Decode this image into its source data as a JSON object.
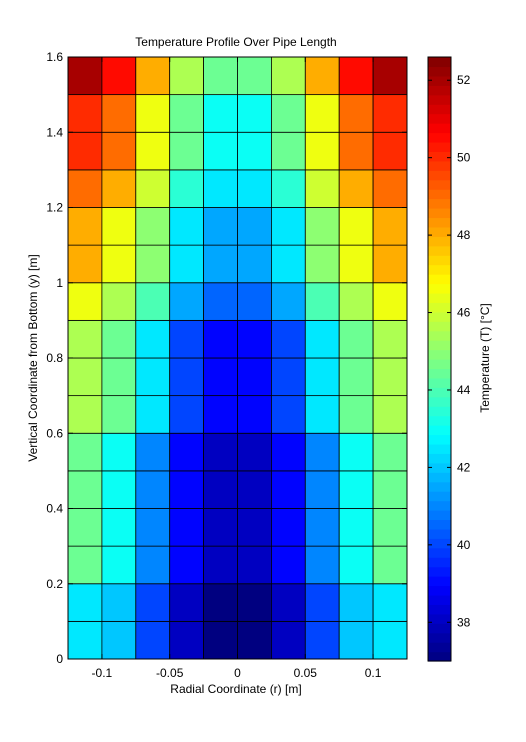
{
  "chart_data": {
    "type": "heatmap",
    "title": "Temperature Profile Over Pipe Length",
    "xlabel": "Radial Coordinate (r) [m]",
    "ylabel": "Vertical Coordinate from Bottom (y) [m]",
    "colorbar_label": "Temperature (T) [°C]",
    "colormap": "jet",
    "xlim": [
      -0.125,
      0.125
    ],
    "ylim": [
      0,
      1.6
    ],
    "clim": [
      37.0,
      52.6
    ],
    "grid": false,
    "legend": "right",
    "x": [
      -0.1125,
      -0.0875,
      -0.0625,
      -0.0375,
      -0.0125,
      0.0125,
      0.0375,
      0.0625,
      0.0875,
      0.1125
    ],
    "y": [
      0.05,
      0.15,
      0.25,
      0.35,
      0.45,
      0.55,
      0.65,
      0.75,
      0.85,
      0.95,
      1.05,
      1.15,
      1.25,
      1.35,
      1.45,
      1.55
    ],
    "values": [
      [
        42.5,
        42.0,
        40.0,
        38.0,
        37.0,
        37.0,
        38.0,
        40.0,
        42.0,
        42.5
      ],
      [
        42.5,
        42.0,
        40.0,
        38.0,
        37.0,
        37.0,
        38.0,
        40.0,
        42.0,
        42.5
      ],
      [
        44.5,
        43.0,
        41.0,
        39.0,
        38.0,
        38.0,
        39.0,
        41.0,
        43.0,
        44.5
      ],
      [
        44.5,
        43.0,
        41.0,
        39.0,
        38.0,
        38.0,
        39.0,
        41.0,
        43.0,
        44.5
      ],
      [
        44.5,
        43.0,
        41.0,
        39.0,
        38.0,
        38.0,
        39.0,
        41.0,
        43.0,
        44.5
      ],
      [
        44.5,
        43.0,
        41.0,
        39.0,
        38.0,
        38.0,
        39.0,
        41.0,
        43.0,
        44.5
      ],
      [
        45.5,
        44.5,
        42.5,
        40.0,
        39.0,
        39.0,
        40.0,
        42.5,
        44.5,
        45.5
      ],
      [
        45.5,
        44.5,
        42.5,
        40.0,
        39.0,
        39.0,
        40.0,
        42.5,
        44.5,
        45.5
      ],
      [
        45.5,
        44.5,
        42.5,
        40.0,
        39.0,
        39.0,
        40.0,
        42.5,
        44.5,
        45.5
      ],
      [
        46.5,
        45.5,
        44.0,
        41.5,
        40.5,
        40.5,
        41.5,
        44.0,
        45.5,
        46.5
      ],
      [
        48.0,
        46.5,
        45.0,
        42.5,
        41.5,
        41.5,
        42.5,
        45.0,
        46.5,
        48.0
      ],
      [
        48.0,
        46.5,
        45.0,
        42.5,
        41.5,
        41.5,
        42.5,
        45.0,
        46.5,
        48.0
      ],
      [
        49.0,
        48.0,
        46.0,
        43.5,
        42.5,
        42.5,
        43.5,
        46.0,
        48.0,
        49.0
      ],
      [
        50.0,
        49.0,
        46.5,
        44.5,
        43.0,
        43.0,
        44.5,
        46.5,
        49.0,
        50.0
      ],
      [
        50.0,
        49.0,
        46.5,
        44.5,
        43.0,
        43.0,
        44.5,
        46.5,
        49.0,
        50.0
      ],
      [
        52.0,
        50.5,
        48.0,
        45.5,
        44.5,
        44.5,
        45.5,
        48.0,
        50.5,
        52.0
      ]
    ],
    "xticks": [
      -0.1,
      -0.05,
      0,
      0.05,
      0.1
    ],
    "xtick_labels": [
      "-0.1",
      "-0.05",
      "0",
      "0.05",
      "0.1"
    ],
    "yticks": [
      0,
      0.2,
      0.4,
      0.6,
      0.8,
      1,
      1.2,
      1.4,
      1.6
    ],
    "ytick_labels": [
      "0",
      "0.2",
      "0.4",
      "0.6",
      "0.8",
      "1",
      "1.2",
      "1.4",
      "1.6"
    ],
    "colorbar_ticks": [
      38,
      40,
      42,
      44,
      46,
      48,
      50,
      52
    ],
    "colorbar_tick_labels": [
      "38",
      "40",
      "42",
      "44",
      "46",
      "48",
      "50",
      "52"
    ]
  }
}
